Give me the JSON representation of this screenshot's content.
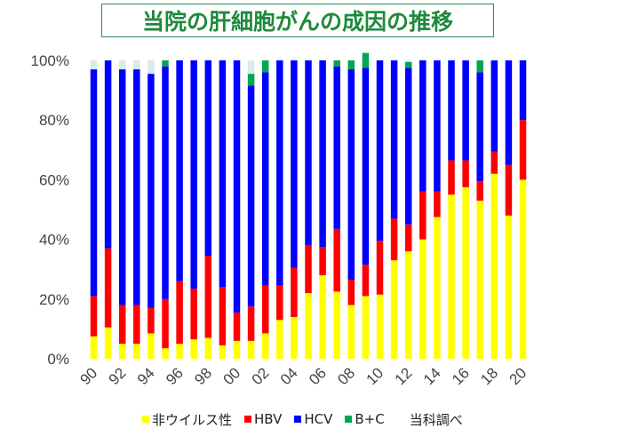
{
  "title": "当院の肝細胞がんの成因の推移",
  "source_note": "当科調べ",
  "colors": {
    "non_viral": "#ffff00",
    "hbv": "#ff0000",
    "hcv": "#0000ff",
    "b_c": "#00a651",
    "unknown": "#d6ecec"
  },
  "chart_data": {
    "type": "bar",
    "stacked": true,
    "ylim": [
      0,
      100
    ],
    "y_ticks": [
      "0%",
      "20%",
      "40%",
      "60%",
      "80%",
      "100%"
    ],
    "x_tick_labels": [
      "90",
      "92",
      "94",
      "96",
      "98",
      "00",
      "02",
      "04",
      "06",
      "08",
      "10",
      "12",
      "14",
      "16",
      "18",
      "20"
    ],
    "categories": [
      "90",
      "91",
      "92",
      "93",
      "94",
      "95",
      "96",
      "97",
      "98",
      "99",
      "00",
      "01",
      "02",
      "03",
      "04",
      "05",
      "06",
      "07",
      "08",
      "09",
      "10",
      "11",
      "12",
      "13",
      "14",
      "15",
      "16",
      "17",
      "18",
      "19",
      "20"
    ],
    "legend_position": "bottom",
    "series": [
      {
        "name": "非ウイルス性",
        "color_key": "non_viral",
        "values": [
          7.5,
          10.5,
          5,
          5,
          8.5,
          3.5,
          5,
          6.5,
          7,
          4.5,
          6,
          6,
          8.5,
          13,
          14,
          22,
          28,
          22.5,
          18,
          21,
          21.5,
          33,
          36,
          40,
          47.5,
          55,
          57.5,
          53,
          62,
          48,
          60
        ]
      },
      {
        "name": "HBV",
        "color_key": "hbv",
        "values": [
          13.5,
          26.5,
          13,
          13,
          8.5,
          16.5,
          21,
          17,
          27.5,
          19.5,
          9.5,
          11.5,
          16,
          11.5,
          16.5,
          16,
          9.5,
          21,
          8.5,
          10.5,
          18,
          14,
          9,
          16,
          8.5,
          11.5,
          9,
          6.5,
          7.5,
          17,
          20
        ]
      },
      {
        "name": "HCV",
        "color_key": "hcv",
        "values": [
          76,
          63,
          79,
          79,
          78.5,
          78,
          74,
          76.5,
          65.5,
          76,
          84.5,
          74,
          71.5,
          75.5,
          69.5,
          62,
          62.5,
          54.5,
          70.5,
          66,
          60.5,
          53,
          52.5,
          44,
          44,
          33.5,
          33.5,
          36.5,
          30.5,
          35,
          20
        ]
      },
      {
        "name": "B+C",
        "color_key": "b_c",
        "values": [
          0,
          0,
          0,
          0,
          0,
          2,
          0,
          0,
          0,
          0,
          0,
          4,
          4,
          0,
          0,
          0,
          0,
          2,
          3,
          5,
          0,
          0,
          2,
          0,
          0,
          0,
          0,
          4,
          0,
          0,
          0
        ]
      }
    ]
  }
}
